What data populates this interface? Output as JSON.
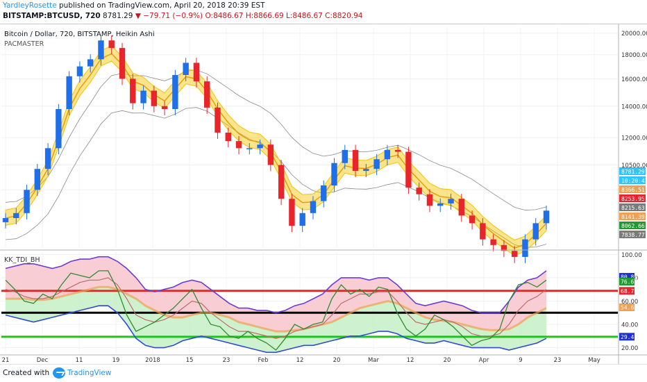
{
  "header": {
    "author": "YardleyRosette",
    "published": "published on TradingView.com, April 20, 2018 20:39 EST",
    "symbol": "BITSTAMP:BTCUSD, 720",
    "last": "8781.29",
    "change": "−79.71 (−0.9%)",
    "ohlc": "O:8486.67 H:8866.69 L:8486.67 C:8820.94"
  },
  "pane_labels": {
    "main_title": "Bitcoin / Dollar, 720, BITSTAMP, Heikin Ashi",
    "main_indicator": "PACMASTER",
    "sub_title": "KK_TDI_BH"
  },
  "footer": {
    "created_with": "Created with",
    "brand": "TradingView"
  },
  "colors": {
    "bull": "#1e6fe8",
    "bear": "#e8252b",
    "pac_band": "#f5c400",
    "pac_mid": "#e89a00",
    "slow_ma": "#8a8a8a",
    "upper_band": "#6a3bd6",
    "lower_band": "#2f49d8",
    "rsi_line": "#2e8b2e",
    "signal_line": "#f0a050",
    "overbought": "#e8252b",
    "midline": "#000000",
    "oversold": "#1ec41e",
    "fill_above": "#f7c6cc",
    "fill_below": "#c6f0c6"
  },
  "chart_data": [
    {
      "type": "candlestick",
      "title": "Bitcoin / Dollar, 720, BITSTAMP, Heikin Ashi",
      "y_scale": "log",
      "ylim": [
        7000,
        20600
      ],
      "y_ticks": [
        "20000.00",
        "18000.00",
        "16000.00",
        "14000.00",
        "12000.00",
        "10500.00",
        "9300.00"
      ],
      "x_tick_labels": [
        "21",
        "Dec",
        "11",
        "19",
        "2018",
        "15",
        "23",
        "Feb",
        "12",
        "20",
        "Mar",
        "12",
        "20",
        "Apr",
        "9",
        "23",
        "May"
      ],
      "price_labels": [
        {
          "value": "8781.29",
          "color": "#2ec4ff"
        },
        {
          "value": "10:20:43",
          "color": "#2ec4ff"
        },
        {
          "value": "8366.51",
          "color": "#f0a050"
        },
        {
          "value": "8253.95",
          "color": "#e8252b"
        },
        {
          "value": "8215.63",
          "color": "#7a7a7a"
        },
        {
          "value": "8141.39",
          "color": "#f0a050"
        },
        {
          "value": "8062.66",
          "color": "#1e9a2e"
        },
        {
          "value": "7838.77",
          "color": "#7a7a7a"
        }
      ],
      "series": [
        {
          "name": "Heikin Ashi close",
          "x": [
            "Nov 21",
            "Nov 24",
            "Nov 27",
            "Nov 30",
            "Dec 3",
            "Dec 6",
            "Dec 9",
            "Dec 12",
            "Dec 15",
            "Dec 17",
            "Dec 19",
            "Dec 21",
            "Dec 23",
            "Dec 26",
            "Dec 29",
            "Jan 1",
            "Jan 4",
            "Jan 7",
            "Jan 10",
            "Jan 13",
            "Jan 16",
            "Jan 19",
            "Jan 22",
            "Jan 25",
            "Jan 28",
            "Jan 31",
            "Feb 3",
            "Feb 6",
            "Feb 9",
            "Feb 12",
            "Feb 15",
            "Feb 18",
            "Feb 21",
            "Feb 24",
            "Feb 27",
            "Mar 2",
            "Mar 5",
            "Mar 8",
            "Mar 11",
            "Mar 14",
            "Mar 17",
            "Mar 20",
            "Mar 23",
            "Mar 26",
            "Mar 29",
            "Apr 1",
            "Apr 4",
            "Apr 7",
            "Apr 10",
            "Apr 13",
            "Apr 16",
            "Apr 19"
          ],
          "values": [
            8100,
            8300,
            9300,
            10300,
            11400,
            13800,
            16200,
            17000,
            17600,
            19300,
            18600,
            16000,
            14200,
            15100,
            14000,
            13800,
            16300,
            17300,
            15800,
            13900,
            12300,
            11800,
            11400,
            11400,
            11600,
            10500,
            8900,
            7800,
            8300,
            8800,
            9500,
            10600,
            11300,
            10200,
            10300,
            10800,
            11300,
            11200,
            9400,
            9100,
            8600,
            8700,
            8900,
            8200,
            7900,
            7300,
            7100,
            6900,
            6700,
            7300,
            7900,
            8400
          ]
        }
      ]
    },
    {
      "type": "line",
      "title": "KK_TDI_BH",
      "ylim": [
        15,
        102
      ],
      "y_ticks": [
        "100.00",
        "80.00",
        "60.00",
        "40.00",
        "20.00"
      ],
      "levels": [
        68.75,
        50,
        29.41
      ],
      "level_labels": [
        {
          "value": "80.83",
          "color": "#1e2fd8"
        },
        {
          "value": "76.67",
          "color": "#1e9a2e"
        },
        {
          "value": "68.75",
          "color": "#e8252b"
        },
        {
          "value": "54.62",
          "color": "#f0a050"
        },
        {
          "value": "29.41",
          "color": "#1e2fd8"
        }
      ],
      "series": [
        {
          "name": "RSI",
          "values": [
            78,
            70,
            60,
            58,
            66,
            62,
            74,
            84,
            82,
            80,
            86,
            86,
            70,
            48,
            34,
            38,
            42,
            48,
            54,
            62,
            70,
            54,
            40,
            38,
            30,
            28,
            34,
            28,
            24,
            18,
            28,
            40,
            36,
            40,
            42,
            62,
            74,
            66,
            70,
            64,
            72,
            70,
            50,
            36,
            30,
            36,
            48,
            44,
            38,
            30,
            22,
            26,
            28,
            36,
            60,
            74,
            76,
            72,
            78
          ]
        },
        {
          "name": "Signal",
          "values": [
            70,
            68,
            64,
            62,
            62,
            64,
            68,
            72,
            76,
            78,
            78,
            80,
            74,
            62,
            48,
            44,
            42,
            44,
            48,
            54,
            60,
            58,
            50,
            44,
            38,
            34,
            34,
            32,
            30,
            28,
            30,
            34,
            36,
            38,
            40,
            48,
            58,
            62,
            66,
            66,
            68,
            68,
            60,
            50,
            42,
            40,
            42,
            44,
            42,
            38,
            32,
            30,
            30,
            32,
            40,
            52,
            60,
            64,
            70
          ]
        },
        {
          "name": "Base",
          "values": [
            62,
            62,
            62,
            61,
            61,
            62,
            64,
            66,
            68,
            70,
            72,
            72,
            70,
            66,
            62,
            56,
            52,
            48,
            46,
            46,
            48,
            50,
            50,
            48,
            46,
            42,
            40,
            38,
            36,
            34,
            34,
            35,
            36,
            38,
            40,
            42,
            46,
            50,
            54,
            56,
            58,
            60,
            58,
            54,
            50,
            46,
            44,
            43,
            42,
            40,
            38,
            36,
            35,
            35,
            36,
            40,
            46,
            50,
            54
          ]
        },
        {
          "name": "Upper band",
          "values": [
            88,
            90,
            92,
            92,
            90,
            88,
            90,
            94,
            96,
            96,
            98,
            98,
            94,
            88,
            80,
            70,
            68,
            70,
            72,
            76,
            78,
            76,
            70,
            64,
            58,
            54,
            54,
            52,
            52,
            50,
            52,
            56,
            58,
            62,
            66,
            74,
            80,
            80,
            80,
            78,
            80,
            80,
            74,
            66,
            58,
            56,
            58,
            60,
            58,
            56,
            52,
            50,
            50,
            50,
            60,
            72,
            78,
            80,
            86
          ]
        },
        {
          "name": "Lower band",
          "values": [
            48,
            46,
            44,
            42,
            44,
            46,
            48,
            50,
            52,
            54,
            56,
            56,
            50,
            40,
            28,
            22,
            20,
            20,
            22,
            26,
            28,
            30,
            28,
            26,
            24,
            22,
            20,
            18,
            16,
            16,
            18,
            20,
            22,
            22,
            24,
            26,
            28,
            30,
            30,
            32,
            34,
            34,
            32,
            28,
            26,
            24,
            24,
            26,
            24,
            22,
            20,
            20,
            20,
            20,
            18,
            20,
            22,
            24,
            28
          ]
        }
      ]
    }
  ]
}
